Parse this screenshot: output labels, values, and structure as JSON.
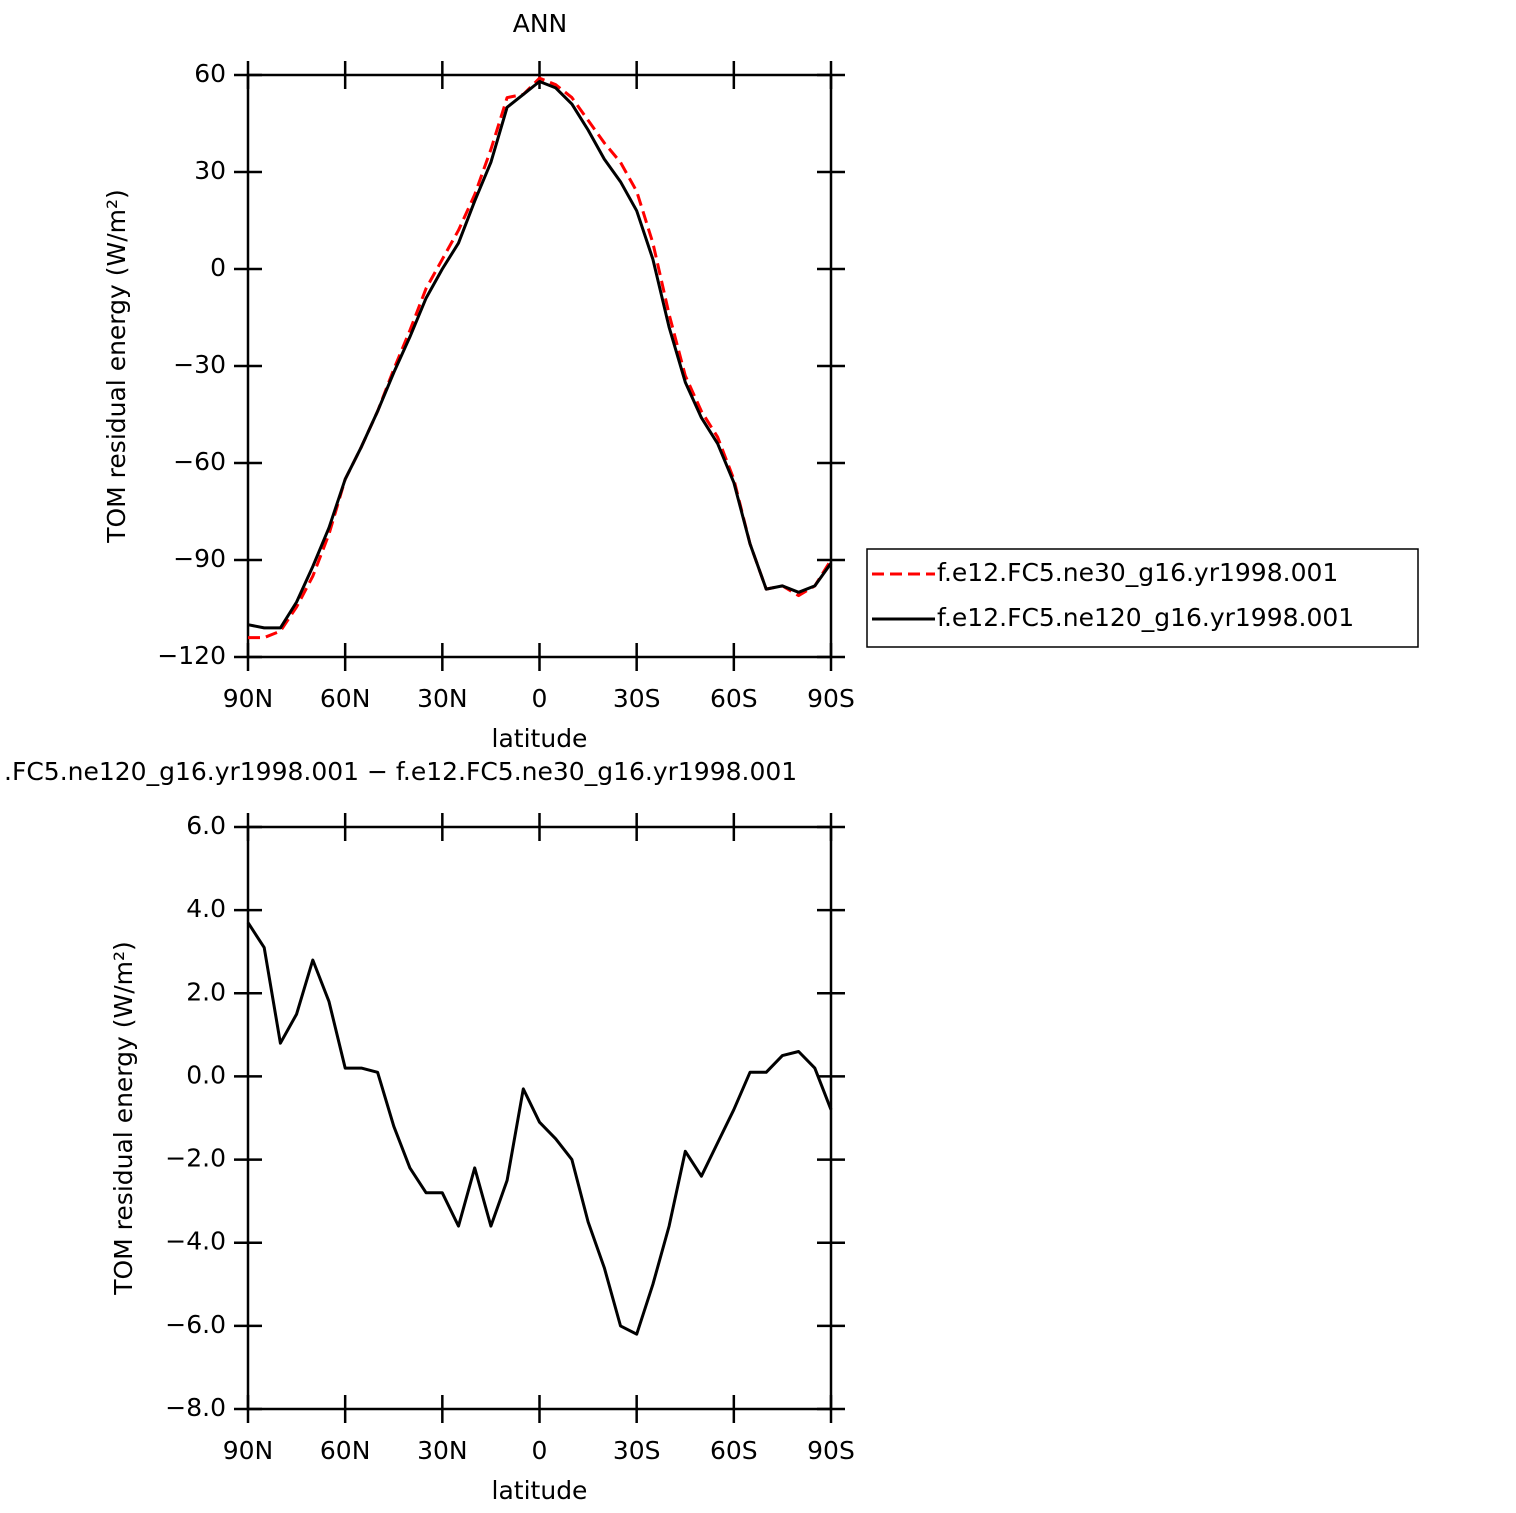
{
  "chart_data": [
    {
      "type": "line",
      "title": "ANN",
      "xlabel": "latitude",
      "ylabel": "TOM residual energy (W/m²)",
      "x": [
        90,
        85,
        80,
        75,
        70,
        65,
        60,
        55,
        50,
        45,
        40,
        35,
        30,
        25,
        20,
        15,
        10,
        5,
        0,
        -5,
        -10,
        -15,
        -20,
        -25,
        -30,
        -35,
        -40,
        -45,
        -50,
        -55,
        -60,
        -65,
        -70,
        -75,
        -80,
        -85,
        -90
      ],
      "series": [
        {
          "name": "f.e12.FC5.ne30_g16.yr1998.001",
          "color": "#ff0000",
          "line_style": "dashed",
          "values": [
            -114,
            -114,
            -112,
            -104.5,
            -95,
            -82,
            -65,
            -55,
            -44,
            -31,
            -19,
            -6,
            3,
            12,
            23,
            37,
            53,
            54,
            59,
            57,
            53,
            46,
            39,
            33,
            24,
            8,
            -14,
            -33,
            -44,
            -52,
            -65,
            -85,
            -99,
            -98,
            -101,
            -98,
            -90
          ]
        },
        {
          "name": "f.e12.FC5.ne120_g16.yr1998.001",
          "color": "#000000",
          "line_style": "solid",
          "values": [
            -110,
            -111,
            -111,
            -103,
            -92,
            -80,
            -65,
            -55,
            -44,
            -32,
            -21,
            -9,
            0,
            8,
            21,
            33,
            50,
            54,
            58,
            56,
            51,
            43,
            34,
            27,
            18,
            3,
            -18,
            -35,
            -46,
            -54,
            -66,
            -85,
            -99,
            -98,
            -100,
            -98,
            -91
          ]
        }
      ],
      "xlim": [
        90,
        -90
      ],
      "xticks": [
        {
          "value": 90,
          "label": "90N"
        },
        {
          "value": 60,
          "label": "60N"
        },
        {
          "value": 30,
          "label": "30N"
        },
        0,
        {
          "value": -30,
          "label": "30S"
        },
        {
          "value": -60,
          "label": "60S"
        },
        {
          "value": -90,
          "label": "90S"
        }
      ],
      "ylim": [
        -120,
        60
      ],
      "yticks": [
        {
          "value": -120,
          "label": "−120"
        },
        {
          "value": -90,
          "label": "−90"
        },
        {
          "value": -60,
          "label": "−60"
        },
        {
          "value": -30,
          "label": "−30"
        },
        0,
        30,
        60
      ],
      "legend": "right"
    },
    {
      "type": "line",
      "title": ".FC5.ne120_g16.yr1998.001 − f.e12.FC5.ne30_g16.yr1998.001",
      "xlabel": "latitude",
      "ylabel": "TOM residual energy (W/m²)",
      "x": [
        90,
        85,
        80,
        75,
        70,
        65,
        60,
        55,
        50,
        45,
        40,
        35,
        30,
        25,
        20,
        15,
        10,
        5,
        0,
        -5,
        -10,
        -15,
        -20,
        -25,
        -30,
        -35,
        -40,
        -45,
        -50,
        -55,
        -60,
        -65,
        -70,
        -75,
        -80,
        -85,
        -90
      ],
      "series": [
        {
          "color": "#000000",
          "line_style": "solid",
          "values": [
            3.7,
            3.1,
            0.8,
            1.5,
            2.8,
            1.8,
            0.2,
            0.2,
            0.1,
            -1.2,
            -2.2,
            -2.8,
            -2.8,
            -3.6,
            -2.2,
            -3.6,
            -2.5,
            -0.3,
            -1.1,
            -1.5,
            -2.0,
            -3.5,
            -4.6,
            -6.0,
            -6.2,
            -5.0,
            -3.6,
            -1.8,
            -2.4,
            -1.6,
            -0.8,
            0.1,
            0.1,
            0.5,
            0.6,
            0.2,
            -0.8
          ]
        }
      ],
      "xlim": [
        90,
        -90
      ],
      "xticks": [
        {
          "value": 90,
          "label": "90N"
        },
        {
          "value": 60,
          "label": "60N"
        },
        {
          "value": 30,
          "label": "30N"
        },
        0,
        {
          "value": -30,
          "label": "30S"
        },
        {
          "value": -60,
          "label": "60S"
        },
        {
          "value": -90,
          "label": "90S"
        }
      ],
      "ylim": [
        -8,
        6
      ],
      "yticks": [
        {
          "value": -8,
          "label": "−8.0"
        },
        {
          "value": -6,
          "label": "−6.0"
        },
        {
          "value": -4,
          "label": "−4.0"
        },
        {
          "value": -2,
          "label": "−2.0"
        },
        {
          "value": 0,
          "label": "0.0"
        },
        {
          "value": 2,
          "label": "2.0"
        },
        {
          "value": 4,
          "label": "4.0"
        },
        {
          "value": 6,
          "label": "6.0"
        }
      ]
    }
  ]
}
